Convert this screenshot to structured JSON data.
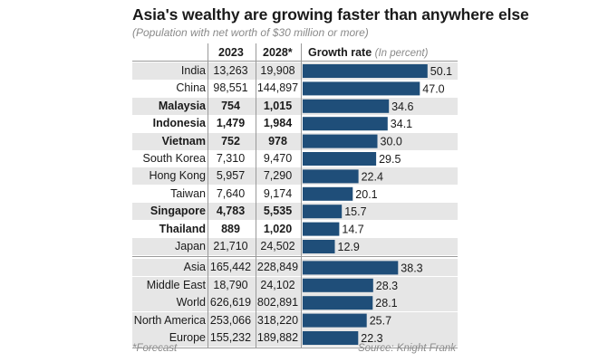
{
  "chart_data": {
    "type": "bar",
    "title": "Asia's wealthy are growing faster than anywhere else",
    "subtitle": "(Population with net worth of $30 million or more)",
    "columns": {
      "col_2023": "2023",
      "col_2028": "2028*",
      "growth": "Growth rate",
      "growth_unit": "(In percent)"
    },
    "xlim": [
      0,
      52
    ],
    "rows": [
      {
        "label": "India",
        "y2023": "13,263",
        "y2028": "19,908",
        "value": 50.1,
        "bold": false,
        "shaded": true
      },
      {
        "label": "China",
        "y2023": "98,551",
        "y2028": "144,897",
        "value": 47.0,
        "bold": false,
        "shaded": false
      },
      {
        "label": "Malaysia",
        "y2023": "754",
        "y2028": "1,015",
        "value": 34.6,
        "bold": true,
        "shaded": true
      },
      {
        "label": "Indonesia",
        "y2023": "1,479",
        "y2028": "1,984",
        "value": 34.1,
        "bold": true,
        "shaded": false
      },
      {
        "label": "Vietnam",
        "y2023": "752",
        "y2028": "978",
        "value": 30.0,
        "bold": true,
        "shaded": true
      },
      {
        "label": "South Korea",
        "y2023": "7,310",
        "y2028": "9,470",
        "value": 29.5,
        "bold": false,
        "shaded": false
      },
      {
        "label": "Hong Kong",
        "y2023": "5,957",
        "y2028": "7,290",
        "value": 22.4,
        "bold": false,
        "shaded": true
      },
      {
        "label": "Taiwan",
        "y2023": "7,640",
        "y2028": "9,174",
        "value": 20.1,
        "bold": false,
        "shaded": false
      },
      {
        "label": "Singapore",
        "y2023": "4,783",
        "y2028": "5,535",
        "value": 15.7,
        "bold": true,
        "shaded": true
      },
      {
        "label": "Thailand",
        "y2023": "889",
        "y2028": "1,020",
        "value": 14.7,
        "bold": true,
        "shaded": false
      },
      {
        "label": "Japan",
        "y2023": "21,710",
        "y2028": "24,502",
        "value": 12.9,
        "bold": false,
        "shaded": true
      },
      {
        "label": "Asia",
        "y2023": "165,442",
        "y2028": "228,849",
        "value": 38.3,
        "bold": false,
        "shaded": true
      },
      {
        "label": "Middle East",
        "y2023": "18,790",
        "y2028": "24,102",
        "value": 28.3,
        "bold": false,
        "shaded": true
      },
      {
        "label": "World",
        "y2023": "626,619",
        "y2028": "802,891",
        "value": 28.1,
        "bold": false,
        "shaded": true
      },
      {
        "label": "North America",
        "y2023": "253,066",
        "y2028": "318,220",
        "value": 25.7,
        "bold": false,
        "shaded": true
      },
      {
        "label": "Europe",
        "y2023": "155,232",
        "y2028": "189,882",
        "value": 22.3,
        "bold": false,
        "shaded": true
      }
    ],
    "footnote": "*Forecast",
    "source": "Source: Knight Frank",
    "colors": {
      "bar": "#1f4e79",
      "shade": "#e6e6e6",
      "rule": "#9a9a9a"
    }
  }
}
